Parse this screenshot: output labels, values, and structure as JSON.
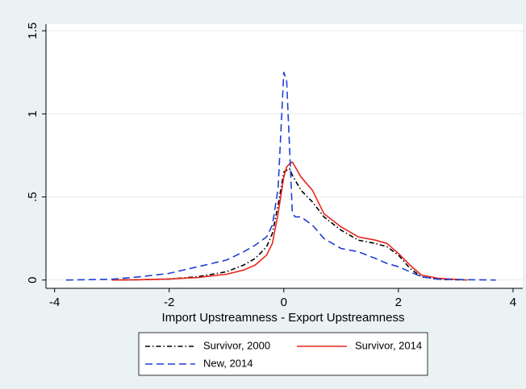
{
  "chart_data": {
    "type": "line",
    "x_label": "Import Upstreamness - Export Upstreamness",
    "x": [
      -3.8,
      -3,
      -2.5,
      -2,
      -1.5,
      -1,
      -0.7,
      -0.5,
      -0.3,
      -0.2,
      -0.1,
      0,
      0.05,
      0.1,
      0.15,
      0.2,
      0.3,
      0.5,
      0.7,
      1,
      1.3,
      1.6,
      1.8,
      2,
      2.2,
      2.4,
      2.7,
      3.2,
      3.7
    ],
    "series": [
      {
        "name": "Survivor, 2000",
        "color": "#000000",
        "style": "dash-dot",
        "values": [
          null,
          0,
          0.002,
          0.006,
          0.02,
          0.05,
          0.09,
          0.13,
          0.2,
          0.28,
          0.45,
          0.65,
          0.66,
          0.67,
          0.63,
          0.6,
          0.54,
          0.47,
          0.38,
          0.3,
          0.24,
          0.22,
          0.2,
          0.15,
          0.07,
          0.02,
          0.005,
          0,
          null
        ]
      },
      {
        "name": "Survivor, 2014",
        "color": "#e8261c",
        "style": "solid",
        "values": [
          null,
          0,
          0.002,
          0.006,
          0.015,
          0.035,
          0.06,
          0.09,
          0.15,
          0.22,
          0.4,
          0.62,
          0.68,
          0.7,
          0.71,
          0.68,
          0.62,
          0.54,
          0.4,
          0.32,
          0.26,
          0.24,
          0.22,
          0.16,
          0.09,
          0.03,
          0.01,
          0,
          null
        ]
      },
      {
        "name": "New, 2014",
        "color": "#1f3fd6",
        "style": "dash",
        "values": [
          0,
          0.005,
          0.02,
          0.04,
          0.08,
          0.12,
          0.17,
          0.21,
          0.26,
          0.33,
          0.55,
          1.25,
          1.2,
          0.8,
          0.4,
          0.38,
          0.38,
          0.33,
          0.25,
          0.19,
          0.17,
          0.13,
          0.1,
          0.08,
          0.05,
          0.02,
          0.005,
          0.002,
          0
        ]
      }
    ],
    "xlim": [
      -4.15,
      4.17
    ],
    "xticks": [
      -4,
      -2,
      0,
      2,
      4
    ],
    "ylim": [
      -0.05,
      1.54
    ],
    "yticks": [
      0,
      {
        "value": 0.5,
        "label": ".5"
      },
      1,
      1.5
    ],
    "grid": true,
    "legend": "bottom"
  }
}
